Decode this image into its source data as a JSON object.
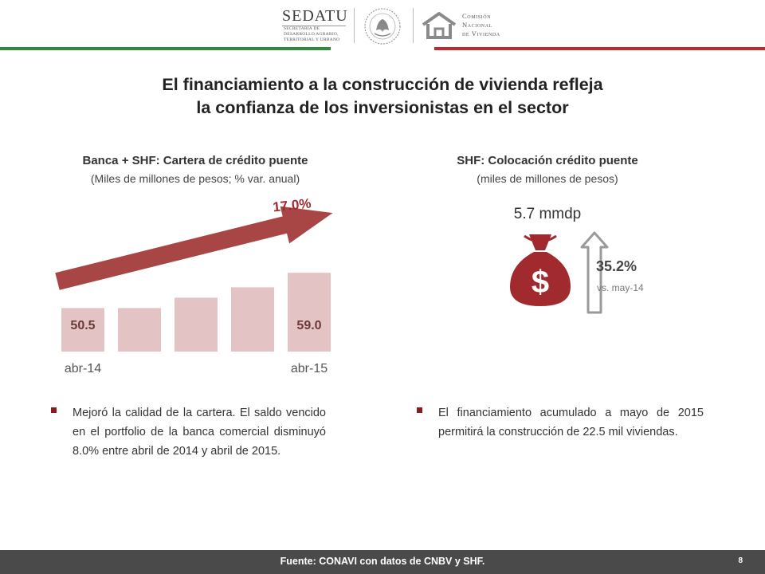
{
  "header": {
    "sedatu_name": "SEDATU",
    "sedatu_subtitle_lines": [
      "SECRETARÍA DE",
      "DESARROLLO AGRARIO,",
      "TERRITORIAL Y URBANO"
    ],
    "conavi_lines": [
      "Comisión",
      "Nacional",
      "de Vivienda"
    ],
    "colors": {
      "green": "#2e8b3a",
      "red": "#c0282d"
    }
  },
  "title_lines": [
    "El financiamiento a la construcción de vivienda  refleja",
    "la confianza de los inversionistas en el sector"
  ],
  "left_panel": {
    "title": "Banca + SHF: Cartera de crédito puente",
    "subtitle": "(Miles de millones de pesos; % var. anual)",
    "bullet": "Mejoró la calidad de la cartera. El saldo vencido en el portfolio de la banca comercial disminuyó 8.0% entre abril de 2014 y abril de 2015."
  },
  "chart_data": {
    "type": "bar",
    "categories": [
      "abr-14",
      "",
      "",
      "",
      "abr-15"
    ],
    "values": [
      50.5,
      50.5,
      53.0,
      55.5,
      59.0
    ],
    "value_labels": [
      "50.5",
      "",
      "",
      "",
      "59.0"
    ],
    "growth_label": "17.0%",
    "colors": {
      "bar": "#e3c3c3",
      "arrow": "#a84545"
    }
  },
  "right_panel": {
    "title": "SHF: Colocación  crédito puente",
    "subtitle": "(miles de millones de pesos)",
    "amount": "5.7 mmdp",
    "growth": "35.2%",
    "comparison": "vs. may-14",
    "bag_icon": "money-bag-icon",
    "bag_symbol": "$",
    "bullet": "El financiamiento acumulado a mayo de 2015 permitirá la construcción de 22.5 mil viviendas.",
    "colors": {
      "bag": "#a12a2e"
    }
  },
  "footer": {
    "source": "Fuente: CONAVI con datos de CNBV y SHF.",
    "page_number": "8"
  }
}
